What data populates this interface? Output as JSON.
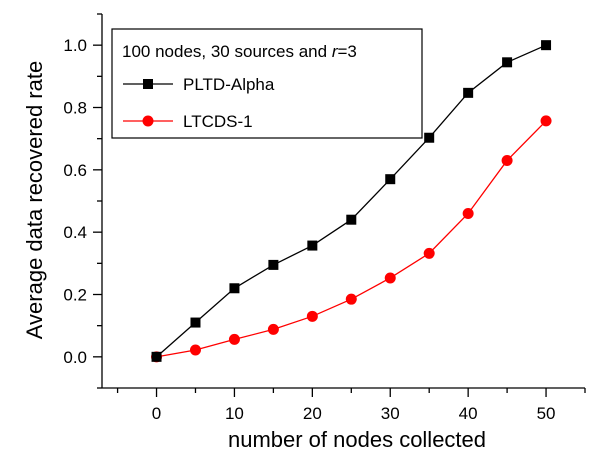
{
  "chart_data": {
    "type": "line",
    "title": "",
    "xlabel": "number of nodes collected",
    "ylabel": "Average data recovered rate",
    "xlim": [
      -7,
      55
    ],
    "ylim": [
      -0.1,
      1.1
    ],
    "xticks": [
      0,
      10,
      20,
      30,
      40,
      50
    ],
    "xticks_minor": [
      -5,
      5,
      15,
      25,
      35,
      45,
      55
    ],
    "yticks": [
      0.0,
      0.2,
      0.4,
      0.6,
      0.8,
      1.0
    ],
    "yticks_minor": [
      -0.1,
      0.1,
      0.3,
      0.5,
      0.7,
      0.9,
      1.1
    ],
    "x": [
      0,
      5,
      10,
      15,
      20,
      25,
      30,
      35,
      40,
      45,
      50
    ],
    "series": [
      {
        "name": "PLTD-Alpha",
        "color": "#000000",
        "marker": "square",
        "values": [
          0.0,
          0.11,
          0.22,
          0.295,
          0.357,
          0.44,
          0.57,
          0.703,
          0.847,
          0.945,
          1.0
        ]
      },
      {
        "name": "LTCDS-1",
        "color": "#ff0000",
        "marker": "circle",
        "values": [
          0.0,
          0.022,
          0.056,
          0.088,
          0.13,
          0.185,
          0.253,
          0.332,
          0.46,
          0.63,
          0.757
        ]
      }
    ],
    "legend": {
      "title_prefix": "100 nodes, 30 sources and ",
      "title_var": "r",
      "title_suffix": "=3",
      "position": "top-left"
    },
    "grid": false
  }
}
